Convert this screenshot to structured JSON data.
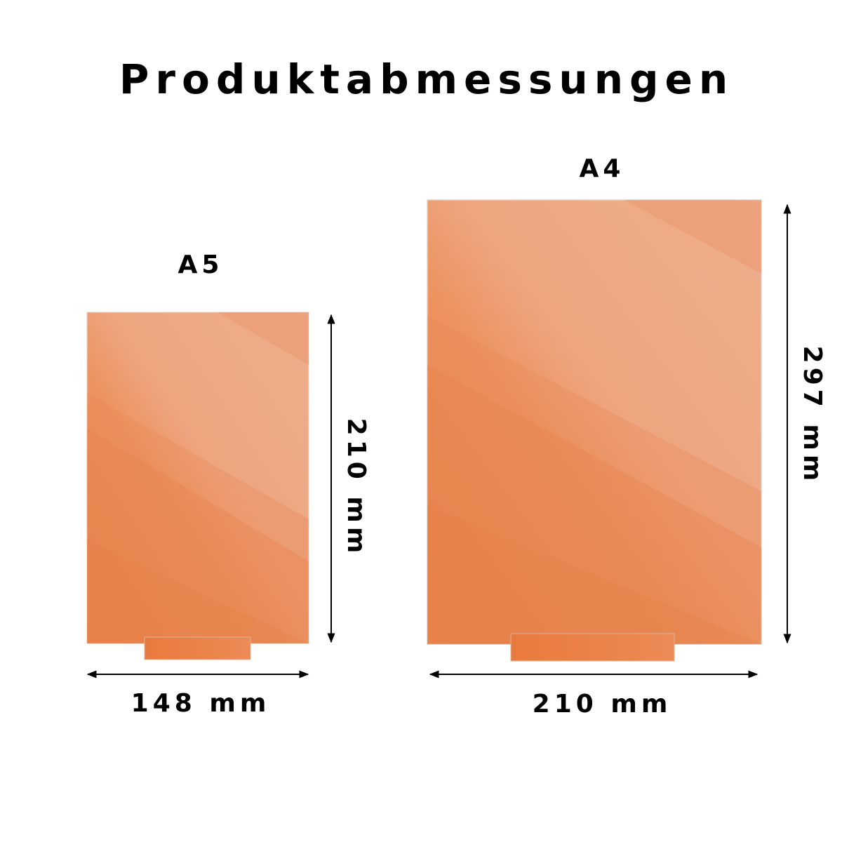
{
  "title": "Produktabmessungen",
  "colors": {
    "panel_light": "#efad8a",
    "panel_dark": "#e97e45",
    "text": "#000000",
    "background": "#ffffff"
  },
  "products": [
    {
      "name": "A5",
      "width_label": "148 mm",
      "height_label": "210 mm"
    },
    {
      "name": "A4",
      "width_label": "210 mm",
      "height_label": "297 mm"
    }
  ]
}
